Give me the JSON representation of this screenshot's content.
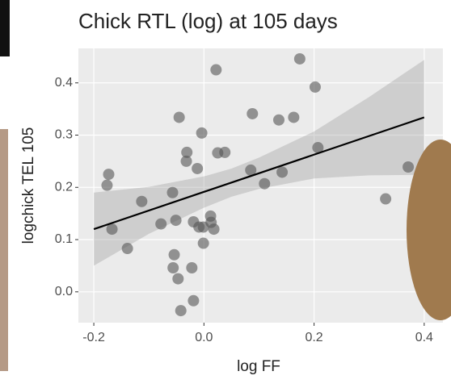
{
  "chart_data": {
    "type": "scatter",
    "title": "Chick RTL (log) at 105 days",
    "x_label": "log FF",
    "y_label": "logchick TEL 105",
    "x": [
      -0.173,
      -0.176,
      -0.167,
      -0.139,
      -0.113,
      -0.078,
      -0.057,
      -0.051,
      -0.054,
      -0.056,
      -0.047,
      -0.042,
      -0.045,
      -0.031,
      -0.032,
      -0.022,
      -0.019,
      -0.019,
      -0.012,
      -0.004,
      -0.009,
      -0.001,
      -0.001,
      0.012,
      0.013,
      0.018,
      0.022,
      0.025,
      0.038,
      0.088,
      0.085,
      0.11,
      0.136,
      0.142,
      0.163,
      0.174,
      0.202,
      0.207,
      0.33,
      0.371
    ],
    "values": [
      0.225,
      0.204,
      0.12,
      0.083,
      0.173,
      0.13,
      0.19,
      0.137,
      0.071,
      0.046,
      0.025,
      -0.036,
      0.334,
      0.267,
      0.25,
      0.046,
      -0.017,
      0.134,
      0.236,
      0.304,
      0.124,
      0.093,
      0.124,
      0.145,
      0.133,
      0.12,
      0.425,
      0.266,
      0.267,
      0.341,
      0.233,
      0.207,
      0.329,
      0.229,
      0.334,
      0.446,
      0.392,
      0.276,
      0.178,
      0.239
    ],
    "color": "#555555",
    "fit": {
      "x": [
        -0.2,
        0.4
      ],
      "y": [
        0.12,
        0.334
      ],
      "color": "#000000"
    },
    "band": {
      "x": [
        -0.2,
        -0.1,
        0,
        0.05,
        0.1,
        0.2,
        0.3,
        0.4
      ],
      "lower": [
        0.05,
        0.111,
        0.161,
        0.182,
        0.197,
        0.217,
        0.223,
        0.224
      ],
      "upper": [
        0.19,
        0.201,
        0.221,
        0.236,
        0.257,
        0.307,
        0.373,
        0.444
      ],
      "color": "#999999"
    },
    "xlim": [
      -0.228,
      0.434
    ],
    "ylim": [
      -0.059,
      0.466
    ],
    "xticks": [
      -0.2,
      {
        "value": 0,
        "label": "0.0"
      },
      0.2,
      0.4
    ],
    "yticks": [
      {
        "value": 0,
        "label": "0.0"
      },
      0.1,
      0.2,
      0.3,
      0.4
    ],
    "grid": true
  }
}
